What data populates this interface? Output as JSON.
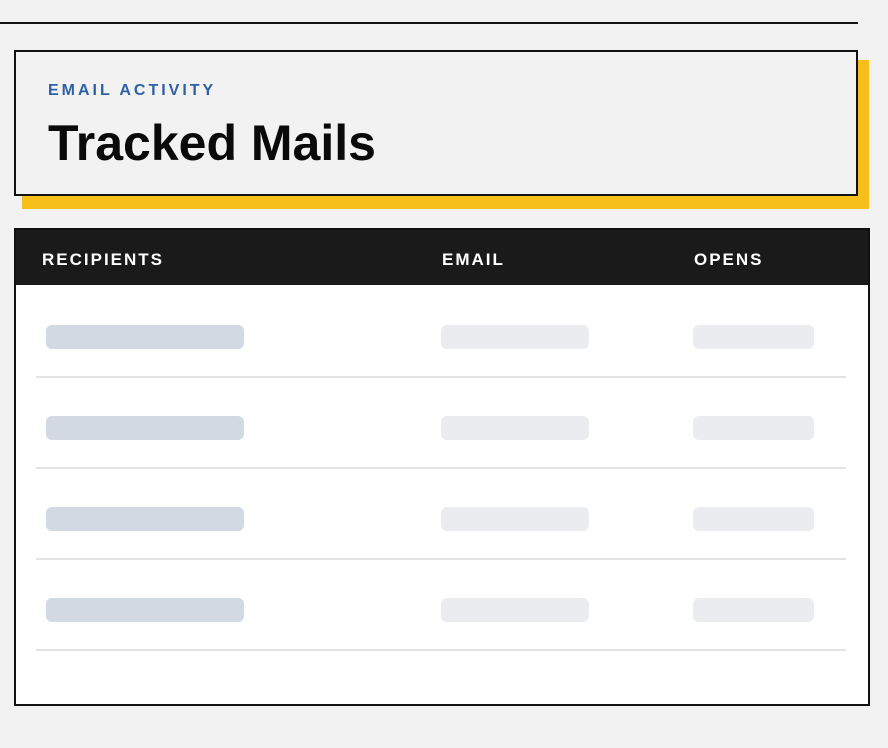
{
  "header": {
    "eyebrow": "EMAIL ACTIVITY",
    "title": "Tracked Mails"
  },
  "table": {
    "columns": [
      "RECIPIENTS",
      "EMAIL",
      "OPENS"
    ]
  }
}
